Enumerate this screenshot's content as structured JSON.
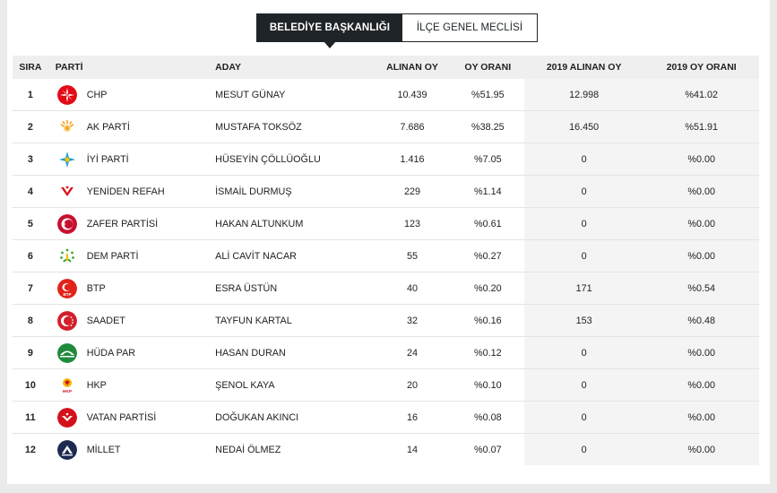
{
  "tabs": {
    "active": "BELEDİYE BAŞKANLIĞI",
    "inactive": "İLÇE GENEL MECLİSİ"
  },
  "headers": {
    "rank": "SIRA",
    "party": "PARTİ",
    "candidate": "ADAY",
    "votes": "ALINAN OY",
    "pct": "OY ORANI",
    "votes_2019": "2019 ALINAN OY",
    "pct_2019": "2019 OY ORANI"
  },
  "rows": [
    {
      "rank": "1",
      "party": "CHP",
      "candidate": "MESUT GÜNAY",
      "votes": "10.439",
      "pct": "%51.95",
      "votes_2019": "12.998",
      "pct_2019": "%41.02",
      "logo_icon": "chp-logo-icon",
      "logo_color": "#e30a17"
    },
    {
      "rank": "2",
      "party": "AK PARTİ",
      "candidate": "MUSTAFA TOKSÖZ",
      "votes": "7.686",
      "pct": "%38.25",
      "votes_2019": "16.450",
      "pct_2019": "%51.91",
      "logo_icon": "akparti-logo-icon",
      "logo_color": "#f7a21b"
    },
    {
      "rank": "3",
      "party": "İYİ PARTİ",
      "candidate": "HÜSEYİN ÇÖLLÜOĞLU",
      "votes": "1.416",
      "pct": "%7.05",
      "votes_2019": "0",
      "pct_2019": "%0.00",
      "logo_icon": "iyiparti-logo-icon",
      "logo_color": "#1e9fd8"
    },
    {
      "rank": "4",
      "party": "YENİDEN REFAH",
      "candidate": "İSMAİL DURMUŞ",
      "votes": "229",
      "pct": "%1.14",
      "votes_2019": "0",
      "pct_2019": "%0.00",
      "logo_icon": "yenidenrefah-logo-icon",
      "logo_color": "#d7141a"
    },
    {
      "rank": "5",
      "party": "ZAFER PARTİSİ",
      "candidate": "HAKAN ALTUNKUM",
      "votes": "123",
      "pct": "%0.61",
      "votes_2019": "0",
      "pct_2019": "%0.00",
      "logo_icon": "zafer-logo-icon",
      "logo_color": "#c8102e"
    },
    {
      "rank": "6",
      "party": "DEM PARTİ",
      "candidate": "ALİ CAVİT NACAR",
      "votes": "55",
      "pct": "%0.27",
      "votes_2019": "0",
      "pct_2019": "%0.00",
      "logo_icon": "dem-logo-icon",
      "logo_color": "#3aa935"
    },
    {
      "rank": "7",
      "party": "BTP",
      "candidate": "ESRA ÜSTÜN",
      "votes": "40",
      "pct": "%0.20",
      "votes_2019": "171",
      "pct_2019": "%0.54",
      "logo_icon": "btp-logo-icon",
      "logo_color": "#e2231a"
    },
    {
      "rank": "8",
      "party": "SAADET",
      "candidate": "TAYFUN KARTAL",
      "votes": "32",
      "pct": "%0.16",
      "votes_2019": "153",
      "pct_2019": "%0.48",
      "logo_icon": "saadet-logo-icon",
      "logo_color": "#d31f2b"
    },
    {
      "rank": "9",
      "party": "HÜDA PAR",
      "candidate": "HASAN DURAN",
      "votes": "24",
      "pct": "%0.12",
      "votes_2019": "0",
      "pct_2019": "%0.00",
      "logo_icon": "hudapar-logo-icon",
      "logo_color": "#1f8a3b"
    },
    {
      "rank": "10",
      "party": "HKP",
      "candidate": "ŞENOL KAYA",
      "votes": "20",
      "pct": "%0.10",
      "votes_2019": "0",
      "pct_2019": "%0.00",
      "logo_icon": "hkp-logo-icon",
      "logo_color": "#f2b705"
    },
    {
      "rank": "11",
      "party": "VATAN PARTİSİ",
      "candidate": "DOĞUKAN AKINCI",
      "votes": "16",
      "pct": "%0.08",
      "votes_2019": "0",
      "pct_2019": "%0.00",
      "logo_icon": "vatan-logo-icon",
      "logo_color": "#d3111b"
    },
    {
      "rank": "12",
      "party": "MİLLET",
      "candidate": "NEDAİ ÖLMEZ",
      "votes": "14",
      "pct": "%0.07",
      "votes_2019": "0",
      "pct_2019": "%0.00",
      "logo_icon": "millet-logo-icon",
      "logo_color": "#1b2a4e"
    }
  ]
}
